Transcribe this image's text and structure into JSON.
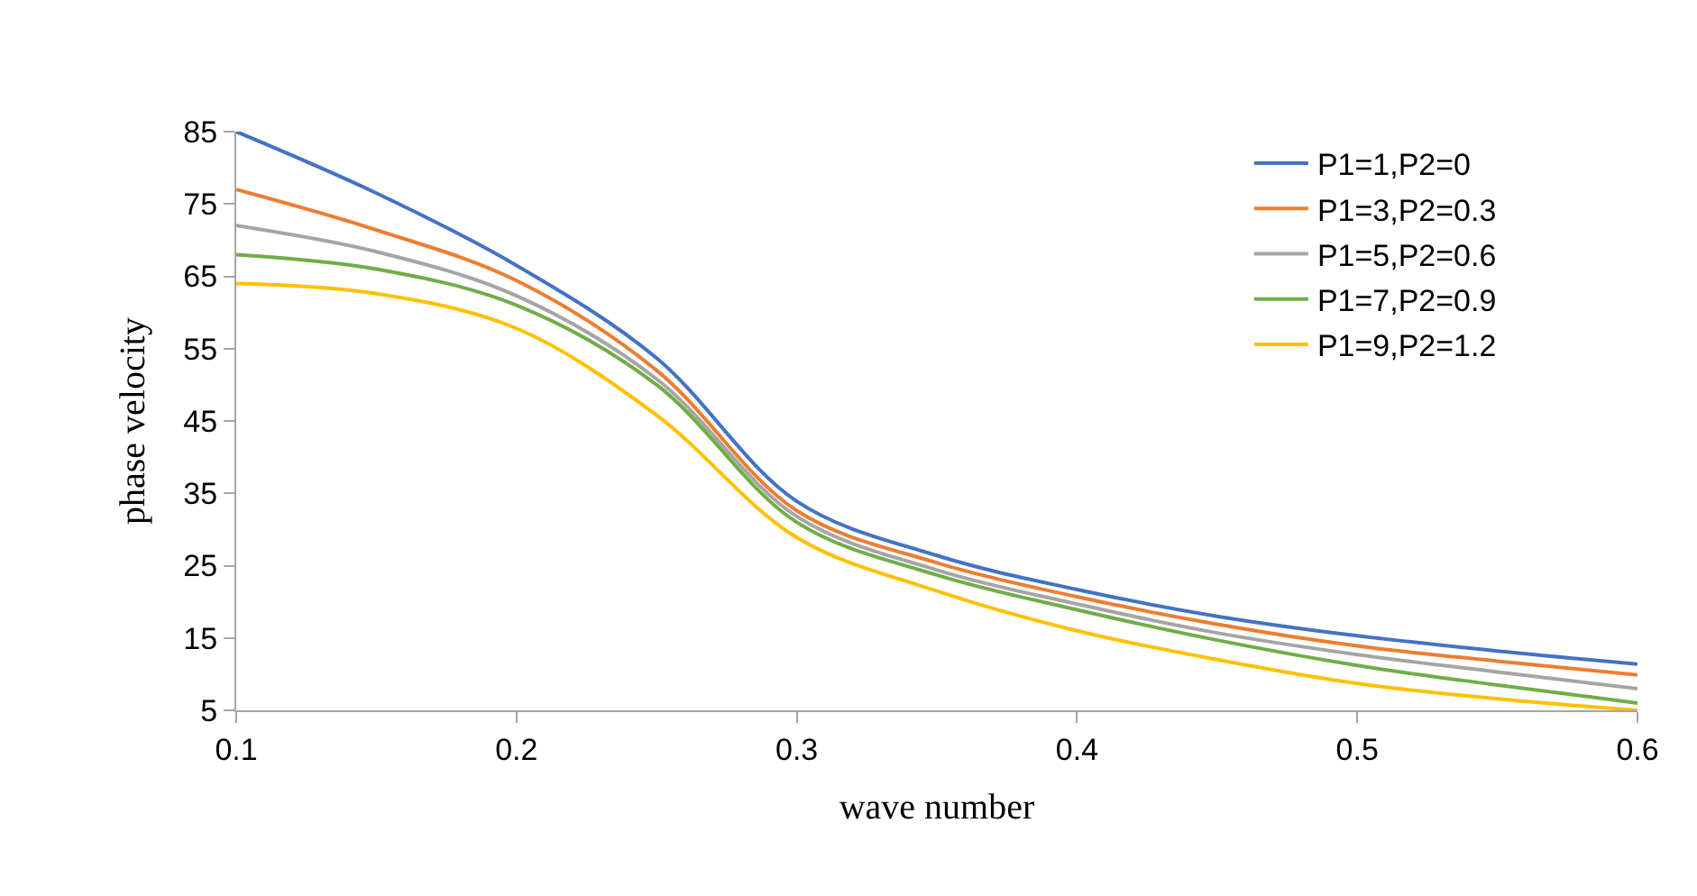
{
  "chart_data": {
    "type": "line",
    "xlabel": "wave number",
    "ylabel": "phase velocity",
    "x": [
      0.1,
      0.15,
      0.2,
      0.25,
      0.3,
      0.35,
      0.4,
      0.45,
      0.5,
      0.55,
      0.6
    ],
    "xlim": [
      0.1,
      0.6
    ],
    "xticks": [
      {
        "value": 0.1,
        "label": "0.1"
      },
      {
        "value": 0.2,
        "label": "0.2"
      },
      {
        "value": 0.3,
        "label": "0.3"
      },
      {
        "value": 0.4,
        "label": "0.4"
      },
      {
        "value": 0.5,
        "label": "0.5"
      },
      {
        "value": 0.6,
        "label": "0.6"
      }
    ],
    "ylim": [
      5,
      85
    ],
    "yticks": [
      5,
      15,
      25,
      35,
      45,
      55,
      65,
      75,
      85
    ],
    "legend": "top right",
    "marker": "none",
    "line_style": "solid",
    "series": [
      {
        "name": "P1=1,P2=0",
        "color": "#4472c4",
        "values": [
          85,
          76.5,
          66.5,
          53.7,
          33.9,
          26.4,
          21.7,
          18,
          15.3,
          13.2,
          11.4
        ]
      },
      {
        "name": "P1=3,P2=0.3",
        "color": "#ed7d31",
        "values": [
          77,
          71.4,
          64.4,
          52,
          32.6,
          25.4,
          20.7,
          16.9,
          13.9,
          11.8,
          9.9
        ]
      },
      {
        "name": "P1=5,P2=0.6",
        "color": "#a5a5a5",
        "values": [
          72,
          68.4,
          62.3,
          50.8,
          31.8,
          24.4,
          19.7,
          15.7,
          12.7,
          10.3,
          8
        ]
      },
      {
        "name": "P1=7,P2=0.9",
        "color": "#70ad47",
        "values": [
          68,
          66,
          61,
          50,
          31,
          23.7,
          18.9,
          14.7,
          11.2,
          8.5,
          6
        ]
      },
      {
        "name": "P1=9,P2=1.2",
        "color": "#ffc000",
        "values": [
          64,
          62.6,
          57.8,
          45.8,
          28.9,
          21.5,
          16,
          12,
          8.7,
          6.6,
          5
        ]
      }
    ]
  }
}
